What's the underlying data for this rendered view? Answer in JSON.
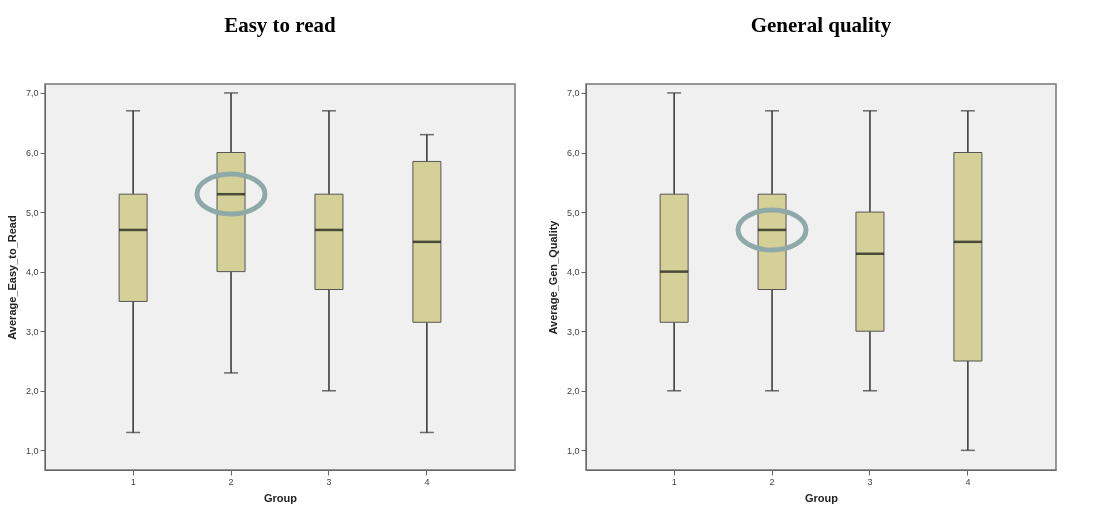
{
  "chart_data": [
    {
      "type": "box",
      "title": "Easy to read",
      "xlabel": "Group",
      "ylabel": "Average_Easy_to_Read",
      "categories": [
        "1",
        "2",
        "3",
        "4"
      ],
      "color": "#d4d098",
      "boxes": [
        {
          "low": 1.3,
          "q1": 3.5,
          "median": 4.7,
          "q3": 5.3,
          "high": 6.7
        },
        {
          "low": 2.3,
          "q1": 4.0,
          "median": 5.3,
          "q3": 6.0,
          "high": 7.0
        },
        {
          "low": 2.0,
          "q1": 3.7,
          "median": 4.7,
          "q3": 5.3,
          "high": 6.7
        },
        {
          "low": 1.3,
          "q1": 3.15,
          "median": 4.5,
          "q3": 5.85,
          "high": 6.3
        }
      ],
      "ylim": [
        0.67,
        7.15
      ],
      "yticks": [
        {
          "value": 1,
          "label": "1,0"
        },
        {
          "value": 2,
          "label": "2,0"
        },
        {
          "value": 3,
          "label": "3,0"
        },
        {
          "value": 4,
          "label": "4,0"
        },
        {
          "value": 5,
          "label": "5,0"
        },
        {
          "value": 6,
          "label": "6,0"
        },
        {
          "value": 7,
          "label": "7,0"
        }
      ]
    },
    {
      "type": "box",
      "title": "General quality",
      "xlabel": "Group",
      "ylabel": "Average_Gen_Quality",
      "categories": [
        "1",
        "2",
        "3",
        "4"
      ],
      "color": "#d4d098",
      "boxes": [
        {
          "low": 2.0,
          "q1": 3.15,
          "median": 4.0,
          "q3": 5.3,
          "high": 7.0
        },
        {
          "low": 2.0,
          "q1": 3.7,
          "median": 4.7,
          "q3": 5.3,
          "high": 6.7
        },
        {
          "low": 2.0,
          "q1": 3.0,
          "median": 4.3,
          "q3": 5.0,
          "high": 6.7
        },
        {
          "low": 1.0,
          "q1": 2.5,
          "median": 4.5,
          "q3": 6.0,
          "high": 6.7
        }
      ],
      "ylim": [
        0.67,
        7.15
      ],
      "yticks": [
        {
          "value": 1,
          "label": "1,0"
        },
        {
          "value": 2,
          "label": "2,0"
        },
        {
          "value": 3,
          "label": "3,0"
        },
        {
          "value": 4,
          "label": "4,0"
        },
        {
          "value": 5,
          "label": "5,0"
        },
        {
          "value": 6,
          "label": "6,0"
        },
        {
          "value": 7,
          "label": "7,0"
        }
      ]
    }
  ]
}
